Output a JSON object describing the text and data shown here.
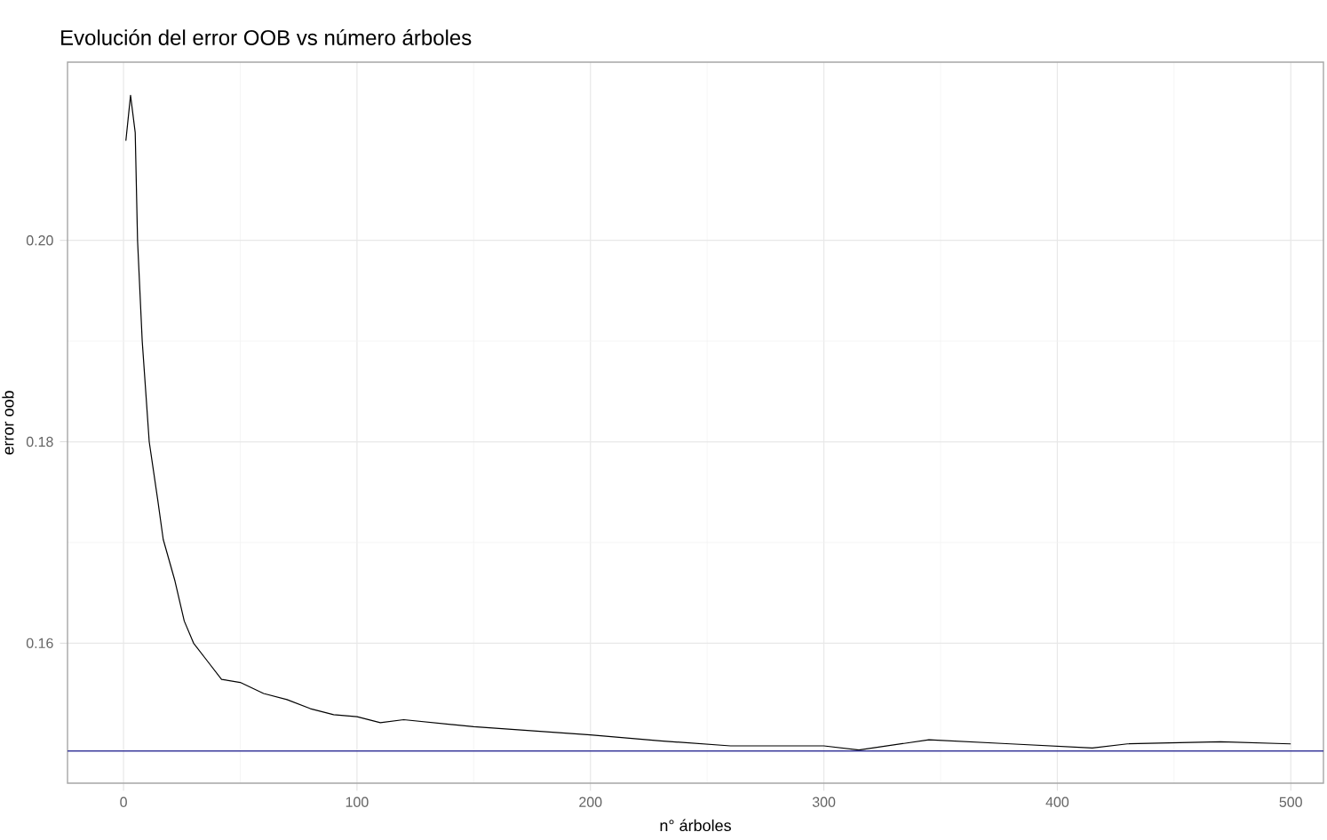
{
  "chart_data": {
    "type": "line",
    "title": "Evolución del error OOB vs número árboles",
    "xlabel": "n° árboles",
    "ylabel": "error oob",
    "x": [
      1,
      3,
      5,
      6,
      8,
      11,
      14.6,
      17,
      22,
      26,
      30,
      36,
      42,
      50,
      60,
      70,
      80,
      90,
      100,
      110,
      120,
      150,
      200,
      230,
      260,
      300,
      315,
      345,
      380,
      415,
      430,
      470,
      500
    ],
    "series": [
      {
        "color": "#000000",
        "values": [
          0.2099,
          0.2144,
          0.2107,
          0.2,
          0.19,
          0.18,
          0.1743,
          0.1703,
          0.1662,
          0.1622,
          0.16,
          0.1582,
          0.1564,
          0.1561,
          0.155,
          0.1544,
          0.1535,
          0.1529,
          0.1527,
          0.1521,
          0.1524,
          0.1517,
          0.1509,
          0.1503,
          0.1498,
          0.1498,
          0.1494,
          0.1504,
          0.15,
          0.1496,
          0.15,
          0.1502,
          0.15
        ]
      }
    ],
    "xlim": [
      -24,
      514
    ],
    "ylim": [
      0.1461,
      0.2177
    ],
    "xticks": [
      0,
      100,
      200,
      300,
      400,
      500
    ],
    "yticks": [
      {
        "value": 0.16,
        "label": "0.16"
      },
      {
        "value": 0.18,
        "label": "0.18"
      },
      {
        "value": 0.2,
        "label": "0.20"
      }
    ],
    "grid": true,
    "ref_lines": [
      {
        "axis": "y",
        "value": 0.1493,
        "color": "#3b3b9b"
      }
    ]
  }
}
